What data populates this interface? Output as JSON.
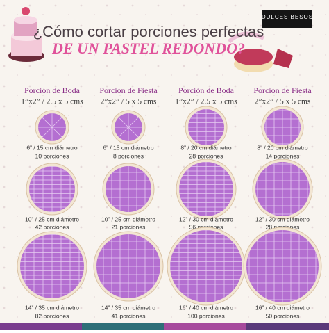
{
  "header": {
    "title_line1": "¿Cómo cortar porciones perfectas",
    "title_line2": "DE UN PASTEL REDONDO?",
    "brand": "DULCES BESOS"
  },
  "columns": [
    {
      "name": "Porción de Boda",
      "size": "1”x2” / 2.5 x 5 cms"
    },
    {
      "name": "Porción de Fiesta",
      "size": "2”x2” / 5 x 5 cms"
    },
    {
      "name": "Porción de Boda",
      "size": "1”x2” / 2.5 x 5 cms"
    },
    {
      "name": "Porción de Fiesta",
      "size": "2”x2” / 5 x 5 cms"
    }
  ],
  "cells": [
    [
      {
        "diameter": "6” / 15 cm diámetro",
        "portions": "10 porciones"
      },
      {
        "diameter": "6” / 15 cm diámetro",
        "portions": "8 porciones"
      },
      {
        "diameter": "8” / 20 cm diámetro",
        "portions": "28 porciones"
      },
      {
        "diameter": "8” / 20 cm diámetro",
        "portions": "14 porciones"
      }
    ],
    [
      {
        "diameter": "10” / 25 cm diámetro",
        "portions": "42 porciones"
      },
      {
        "diameter": "10” / 25 cm diámetro",
        "portions": "21 porciones"
      },
      {
        "diameter": "12” / 30 cm diámetro",
        "portions": "56 porciones"
      },
      {
        "diameter": "12” / 30 cm diámetro",
        "portions": "28 porciones"
      }
    ],
    [
      {
        "diameter": "14” / 35 cm diámetro",
        "portions": "82 porciones"
      },
      {
        "diameter": "14” / 35 cm diámetro",
        "portions": "41 porciones"
      },
      {
        "diameter": "16” / 40 cm diámetro",
        "portions": "100 porciones"
      },
      {
        "diameter": "16” / 40 cm diámetro",
        "portions": "50 porciones"
      }
    ]
  ]
}
